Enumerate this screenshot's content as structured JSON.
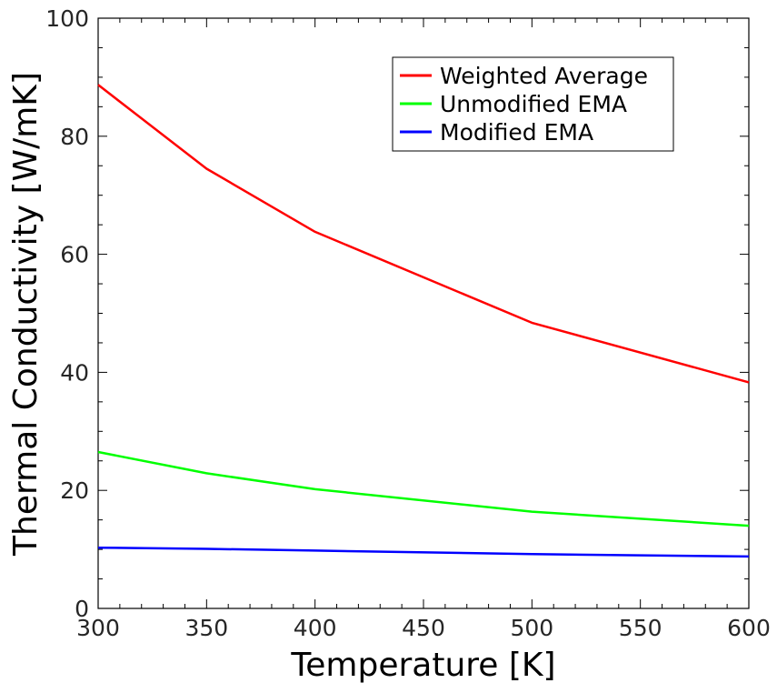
{
  "chart_data": {
    "type": "line",
    "title": "",
    "xlabel": "Temperature [K]",
    "ylabel": "Thermal Conductivity [W/mK]",
    "xlim": [
      300,
      600
    ],
    "ylim": [
      0,
      100
    ],
    "x_ticks": [
      300,
      350,
      400,
      450,
      500,
      550,
      600
    ],
    "y_ticks": [
      0,
      20,
      40,
      60,
      80,
      100
    ],
    "grid": false,
    "legend_position": "top-right",
    "x": [
      300,
      350,
      400,
      500,
      600
    ],
    "series": [
      {
        "name": "Weighted Average",
        "color": "#ff0000",
        "values": [
          88.7,
          74.5,
          63.8,
          48.4,
          38.3
        ]
      },
      {
        "name": "Unmodified EMA",
        "color": "#00ff00",
        "values": [
          26.5,
          22.9,
          20.2,
          16.4,
          14.0
        ]
      },
      {
        "name": "Modified EMA",
        "color": "#0000ff",
        "values": [
          10.3,
          10.1,
          9.8,
          9.2,
          8.8
        ]
      }
    ]
  }
}
